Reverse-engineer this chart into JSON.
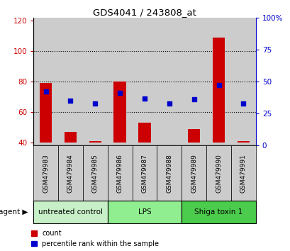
{
  "title": "GDS4041 / 243808_at",
  "samples": [
    "GSM479983",
    "GSM479984",
    "GSM479985",
    "GSM479986",
    "GSM479987",
    "GSM479988",
    "GSM479989",
    "GSM479990",
    "GSM479991"
  ],
  "counts": [
    79,
    47,
    41,
    80,
    53,
    40,
    49,
    109,
    41
  ],
  "percentile_ranks": [
    42,
    35,
    33,
    41,
    37,
    33,
    36,
    47,
    33
  ],
  "bar_bottom": 40,
  "ylim_left": [
    38,
    122
  ],
  "ylim_right": [
    0,
    100
  ],
  "yticks_left": [
    40,
    60,
    80,
    100,
    120
  ],
  "yticks_right": [
    0,
    25,
    50,
    75,
    100
  ],
  "yticklabels_right": [
    "0",
    "25",
    "50",
    "75",
    "100%"
  ],
  "groups": [
    {
      "label": "untreated control",
      "start": 0,
      "end": 3,
      "color": "#c8f0c8"
    },
    {
      "label": "LPS",
      "start": 3,
      "end": 6,
      "color": "#90ee90"
    },
    {
      "label": "Shiga toxin 1",
      "start": 6,
      "end": 9,
      "color": "#4ccc4c"
    }
  ],
  "agent_label": "agent",
  "bar_color": "#cc0000",
  "percentile_color": "#0000cc",
  "grid_color": "#000000",
  "col_bg_color": "#cccccc",
  "legend_count_color": "#cc0000",
  "legend_pct_color": "#0000cc"
}
